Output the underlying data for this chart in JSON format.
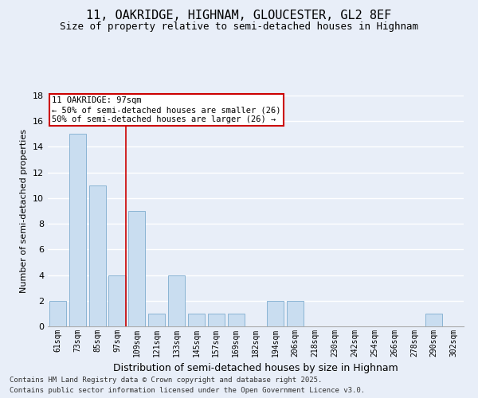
{
  "title1": "11, OAKRIDGE, HIGHNAM, GLOUCESTER, GL2 8EF",
  "title2": "Size of property relative to semi-detached houses in Highnam",
  "xlabel": "Distribution of semi-detached houses by size in Highnam",
  "ylabel": "Number of semi-detached properties",
  "categories": [
    "61sqm",
    "73sqm",
    "85sqm",
    "97sqm",
    "109sqm",
    "121sqm",
    "133sqm",
    "145sqm",
    "157sqm",
    "169sqm",
    "182sqm",
    "194sqm",
    "206sqm",
    "218sqm",
    "230sqm",
    "242sqm",
    "254sqm",
    "266sqm",
    "278sqm",
    "290sqm",
    "302sqm"
  ],
  "values": [
    2,
    15,
    11,
    4,
    9,
    1,
    4,
    1,
    1,
    1,
    0,
    2,
    2,
    0,
    0,
    0,
    0,
    0,
    0,
    1,
    0
  ],
  "bar_color": "#c9ddf0",
  "bar_edge_color": "#8ab4d4",
  "marker_line_color": "#cc0000",
  "annotation_line1": "11 OAKRIDGE: 97sqm",
  "annotation_line2": "← 50% of semi-detached houses are smaller (26)",
  "annotation_line3": "50% of semi-detached houses are larger (26) →",
  "annotation_box_color": "#ffffff",
  "annotation_box_edge": "#cc0000",
  "background_color": "#e8eef8",
  "grid_color": "#ffffff",
  "ylim": [
    0,
    18
  ],
  "yticks": [
    0,
    2,
    4,
    6,
    8,
    10,
    12,
    14,
    16,
    18
  ],
  "footnote1": "Contains HM Land Registry data © Crown copyright and database right 2025.",
  "footnote2": "Contains public sector information licensed under the Open Government Licence v3.0.",
  "title1_fontsize": 11,
  "title2_fontsize": 9,
  "xlabel_fontsize": 9,
  "ylabel_fontsize": 8,
  "tick_fontsize": 7,
  "footnote_fontsize": 6.5,
  "ann_fontsize": 7.5
}
